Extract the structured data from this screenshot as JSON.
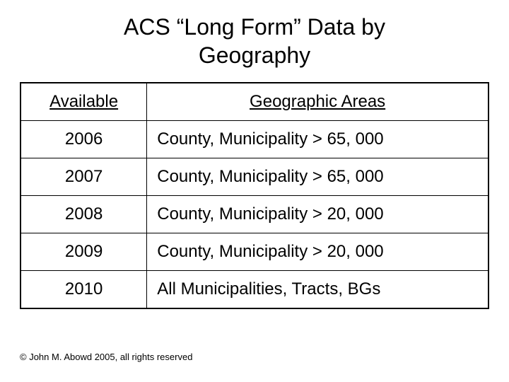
{
  "title_line1": "ACS “Long Form” Data by",
  "title_line2": "Geography",
  "table": {
    "columns": [
      "Available",
      "Geographic Areas"
    ],
    "rows": [
      [
        "2006",
        "County, Municipality > 65, 000"
      ],
      [
        "2007",
        "County, Municipality > 65, 000"
      ],
      [
        "2008",
        "County, Municipality > 20, 000"
      ],
      [
        "2009",
        "County, Municipality > 20, 000"
      ],
      [
        "2010",
        "All Municipalities, Tracts, BGs"
      ]
    ]
  },
  "footer": "© John M. Abowd 2005, all rights reserved",
  "colors": {
    "background": "#ffffff",
    "text": "#000000",
    "border": "#000000"
  },
  "fonts": {
    "title_size": 32,
    "cell_size": 24,
    "footer_size": 13
  }
}
